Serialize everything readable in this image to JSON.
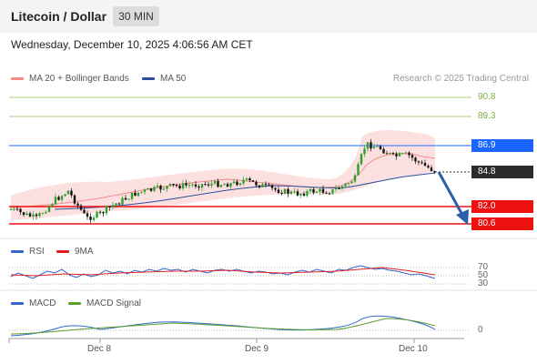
{
  "header": {
    "title": "Litecoin / Dollar",
    "timeframe": "30 MIN"
  },
  "datetime": "Wednesday, December 10, 2025 4:06:56 AM CET",
  "legend": {
    "ma20": {
      "label": "MA 20 + Bollinger Bands",
      "color": "#f48a8a"
    },
    "ma50": {
      "label": "MA 50",
      "color": "#2a4f9b"
    }
  },
  "credit": "Research © 2025 Trading Central",
  "levels": {
    "r2": "90.8",
    "r1": "89.3",
    "pivot": "86.9",
    "last": "84.8",
    "s1": "82.0",
    "s2": "80.6"
  },
  "rsi_panel": {
    "legend_rsi": "RSI",
    "legend_ma": "9MA",
    "ticks": [
      "70",
      "50",
      "30"
    ]
  },
  "macd_panel": {
    "legend_macd": "MACD",
    "legend_signal": "MACD Signal",
    "ticks": [
      "0"
    ]
  },
  "x_axis": {
    "labels": [
      "Dec 8",
      "Dec 9",
      "Dec 10"
    ]
  },
  "colors": {
    "bullish": "#2ca02c",
    "bearish": "#111111",
    "pivot": "#1a66ff",
    "support": "#ee1111",
    "resistance": "#7cae3f",
    "rsi": "#3366cc",
    "rsi_ma": "#e02020",
    "macd": "#3366cc",
    "signal": "#5aa02c",
    "forecast_arrow": "#2a5fa8"
  }
}
